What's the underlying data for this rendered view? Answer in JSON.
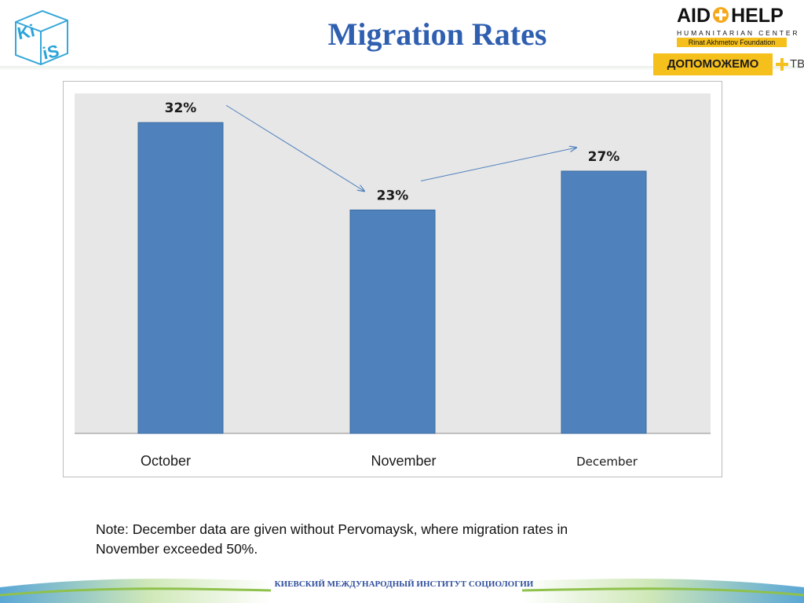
{
  "title": "Migration Rates",
  "logos": {
    "kiis": {
      "line1": "Ki",
      "line2": "iS"
    },
    "aidhelp": {
      "word_left": "AID",
      "word_right": "HELP",
      "subtitle": "HUMANITARIAN CENTER",
      "foundation": "Rinat Akhmetov Foundation"
    },
    "tv": {
      "text": "ДОПОМОЖЕМО",
      "suffix": "ТВ"
    }
  },
  "colors": {
    "title": "#2f5fb0",
    "bar": "#4f81bd",
    "plot_bg": "#e7e7e7",
    "accent_yellow": "#f6c01c",
    "arrow": "#4f81bd"
  },
  "chart_data": {
    "type": "bar",
    "categories": [
      "October",
      "November",
      "December"
    ],
    "values": [
      32,
      23,
      27
    ],
    "data_labels": [
      "32%",
      "23%",
      "27%"
    ],
    "title": "",
    "xlabel": "",
    "ylabel": "",
    "ylim": [
      0,
      35
    ],
    "grid": false,
    "legend": "none",
    "annotations": [
      "arrow from October label to November label",
      "arrow from November label to December label"
    ]
  },
  "note": {
    "line1": "Note: December data are given without Pervomaysk, where migration rates in",
    "line2": "November exceeded 50%."
  },
  "footer": {
    "text": "КИЕВСКИЙ МЕЖДУНАРОДНЫЙ ИНСТИТУТ СОЦИОЛОГИИ"
  }
}
